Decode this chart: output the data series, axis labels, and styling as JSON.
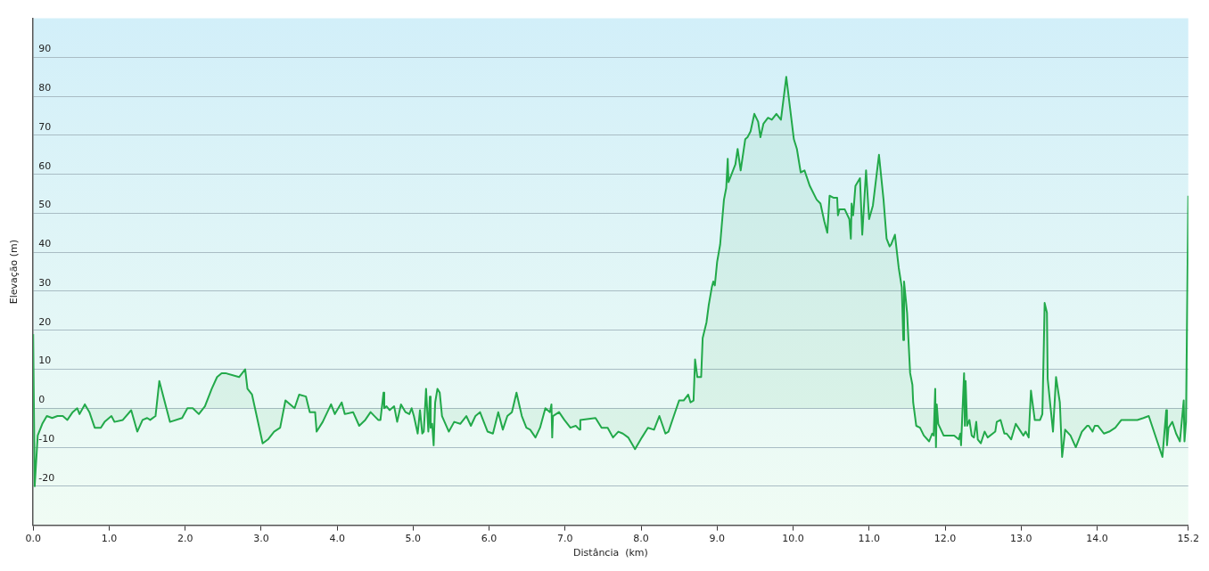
{
  "chart_data": {
    "type": "area",
    "xlabel": "Distância  (km)",
    "ylabel": "Elevação (m)",
    "xlim": [
      0,
      15.2
    ],
    "ylim": [
      -30,
      100
    ],
    "xticks": [
      {
        "value": 0,
        "label": "0.0"
      },
      {
        "value": 1,
        "label": "1.0"
      },
      {
        "value": 2,
        "label": "2.0"
      },
      {
        "value": 3,
        "label": "3.0"
      },
      {
        "value": 4,
        "label": "4.0"
      },
      {
        "value": 5,
        "label": "5.0"
      },
      {
        "value": 6,
        "label": "6.0"
      },
      {
        "value": 7,
        "label": "7.0"
      },
      {
        "value": 8,
        "label": "8.0"
      },
      {
        "value": 9,
        "label": "9.0"
      },
      {
        "value": 10,
        "label": "10.0"
      },
      {
        "value": 11,
        "label": "11.0"
      },
      {
        "value": 12,
        "label": "12.0"
      },
      {
        "value": 13,
        "label": "13.0"
      },
      {
        "value": 14,
        "label": "14.0"
      },
      {
        "value": 15.2,
        "label": "15.2"
      }
    ],
    "yticks": [
      -20,
      -10,
      0,
      10,
      20,
      30,
      40,
      50,
      60,
      70,
      80,
      90
    ],
    "grid": "y",
    "legend": false,
    "series": [
      {
        "color": "#22a94a",
        "x": [
          0,
          0.02,
          0.06,
          0.12,
          0.18,
          0.25,
          0.32,
          0.39,
          0.45,
          0.52,
          0.58,
          0.61,
          0.68,
          0.74,
          0.81,
          0.89,
          0.94,
          1.03,
          1.07,
          1.18,
          1.29,
          1.37,
          1.44,
          1.5,
          1.54,
          1.61,
          1.66,
          1.8,
          1.96,
          2.03,
          2.1,
          2.18,
          2.26,
          2.35,
          2.42,
          2.48,
          2.53,
          2.71,
          2.79,
          2.82,
          2.88,
          3.02,
          3.09,
          3.17,
          3.25,
          3.32,
          3.44,
          3.5,
          3.59,
          3.64,
          3.71,
          3.73,
          3.81,
          3.92,
          3.97,
          4.06,
          4.1,
          4.21,
          4.29,
          4.37,
          4.44,
          4.54,
          4.57,
          4.61,
          4.62,
          4.65,
          4.69,
          4.75,
          4.79,
          4.84,
          4.9,
          4.95,
          4.98,
          5.01,
          5.06,
          5.09,
          5.12,
          5.14,
          5.17,
          5.2,
          5.22,
          5.23,
          5.25,
          5.27,
          5.29,
          5.32,
          5.35,
          5.38,
          5.47,
          5.54,
          5.62,
          5.7,
          5.76,
          5.82,
          5.88,
          5.98,
          6.05,
          6.12,
          6.18,
          6.24,
          6.3,
          6.36,
          6.43,
          6.49,
          6.54,
          6.61,
          6.67,
          6.74,
          6.8,
          6.82,
          6.83,
          6.84,
          6.92,
          6.99,
          7.07,
          7.14,
          7.19,
          7.2,
          7.4,
          7.48,
          7.56,
          7.63,
          7.7,
          7.76,
          7.83,
          7.92,
          8.01,
          8.09,
          8.17,
          8.24,
          8.32,
          8.36,
          8.43,
          8.5,
          8.56,
          8.62,
          8.65,
          8.69,
          8.71,
          8.74,
          8.79,
          8.81,
          8.86,
          8.89,
          8.93,
          8.95,
          8.97,
          9.0,
          9.04,
          9.07,
          9.09,
          9.12,
          9.14,
          9.15,
          9.24,
          9.27,
          9.31,
          9.37,
          9.4,
          9.44,
          9.49,
          9.54,
          9.57,
          9.61,
          9.67,
          9.72,
          9.78,
          9.84,
          9.91,
          10.01,
          10.05,
          10.1,
          10.15,
          10.22,
          10.31,
          10.36,
          10.41,
          10.45,
          10.48,
          10.53,
          10.58,
          10.59,
          10.61,
          10.68,
          10.74,
          10.76,
          10.77,
          10.79,
          10.82,
          10.88,
          10.91,
          10.96,
          11.0,
          11.05,
          11.13,
          11.19,
          11.23,
          11.27,
          11.29,
          11.34,
          11.39,
          11.43,
          11.45,
          11.46,
          11.5,
          11.54,
          11.57,
          11.58,
          11.62,
          11.67,
          11.72,
          11.79,
          11.83,
          11.85,
          11.87,
          11.88,
          11.89,
          11.91,
          11.98,
          12.12,
          12.18,
          12.2,
          12.21,
          12.25,
          12.26,
          12.27,
          12.29,
          12.32,
          12.35,
          12.38,
          12.41,
          12.43,
          12.47,
          12.52,
          12.56,
          12.66,
          12.68,
          12.73,
          12.78,
          12.81,
          12.87,
          12.93,
          12.98,
          13.03,
          13.06,
          13.1,
          13.13,
          13.18,
          13.25,
          13.28,
          13.3,
          13.31,
          13.34,
          13.35,
          13.42,
          13.46,
          13.51,
          13.54,
          13.58,
          13.65,
          13.72,
          13.8,
          13.87,
          13.89,
          13.94,
          13.97,
          14.01,
          14.09,
          14.16,
          14.24,
          14.32,
          14.38,
          14.46,
          14.53,
          14.61,
          14.68,
          14.86,
          14.91,
          14.92,
          14.94,
          14.99,
          15.04,
          15.09,
          15.14,
          15.15,
          15.17,
          15.2
        ],
        "values": [
          19,
          -20,
          -7,
          -4,
          -2,
          -2.5,
          -2,
          -2,
          -3,
          -1,
          0,
          -1.5,
          1,
          -1,
          -5,
          -5,
          -3.5,
          -2,
          -3.5,
          -3,
          -0.5,
          -6,
          -3,
          -2.5,
          -3,
          -2,
          7,
          -3.5,
          -2.5,
          0,
          0,
          -1.5,
          0.5,
          5,
          8,
          9,
          9,
          8,
          10,
          5,
          3.5,
          -9,
          -8,
          -6,
          -5,
          2,
          0,
          3.5,
          3,
          -1,
          -1,
          -6,
          -3.5,
          1,
          -1.5,
          1.5,
          -1.5,
          -1,
          -4.5,
          -3,
          -1,
          -3,
          -3,
          4,
          0,
          0.5,
          -0.5,
          0.5,
          -3.5,
          1,
          -1,
          -1.5,
          0,
          -2,
          -6.5,
          -0.5,
          -6.5,
          -6,
          5,
          -6,
          3,
          -5,
          -4,
          -9.5,
          1.5,
          5,
          4,
          -2,
          -6,
          -3.5,
          -4,
          -2,
          -4.5,
          -2,
          -1,
          -6,
          -6.5,
          -1,
          -5.5,
          -2,
          -1,
          4,
          -2,
          -5,
          -5.5,
          -7.5,
          -5,
          0,
          -1,
          1,
          -7.5,
          -2,
          -1,
          -3,
          -5,
          -4.5,
          -5.5,
          -3,
          -2.5,
          -5,
          -5,
          -7.5,
          -6,
          -6.5,
          -7.5,
          -10.5,
          -7.5,
          -5,
          -5.5,
          -2,
          -6.5,
          -6,
          -2,
          2,
          2,
          3.5,
          1.5,
          2,
          12.5,
          8,
          8,
          18,
          22,
          26.5,
          31,
          32.5,
          31.5,
          37.5,
          42,
          49,
          53.5,
          56.5,
          64,
          58,
          62.5,
          66.5,
          61,
          69,
          69.5,
          71,
          75.5,
          73.5,
          69.5,
          73,
          74.5,
          74,
          75.5,
          74,
          85,
          69,
          66.5,
          60.5,
          61,
          57,
          53.5,
          52.5,
          48,
          45,
          54.5,
          54,
          54,
          49.5,
          51,
          51,
          48.5,
          43.5,
          52.5,
          49.5,
          57,
          59,
          44.5,
          61,
          48.5,
          52,
          65,
          53.5,
          43.5,
          41.5,
          42,
          44.5,
          36,
          31,
          17.5,
          32.5,
          24.5,
          9,
          6,
          1.5,
          -4.5,
          -5,
          -7,
          -8.5,
          -6.5,
          -7,
          5,
          -10,
          1,
          -4,
          -7,
          -7,
          -8,
          -6.5,
          -9.5,
          9,
          -4.5,
          7,
          -4.5,
          -3,
          -7,
          -7.5,
          -3.5,
          -8,
          -9,
          -6,
          -7.5,
          -6,
          -3.5,
          -3,
          -6.5,
          -6.5,
          -8,
          -4,
          -5.5,
          -7,
          -6,
          -7.5,
          4.5,
          -3,
          -3,
          -1.5,
          17,
          27,
          24.5,
          7.5,
          -6,
          8,
          1.5,
          -12.5,
          -5.5,
          -7,
          -10,
          -6,
          -4.5,
          -4.5,
          -6,
          -4.5,
          -4.5,
          -6.5,
          -6,
          -5,
          -3,
          -3,
          -3,
          -3,
          -2.5,
          -2,
          -12.5,
          -0.5,
          -9.5,
          -5,
          -3.5,
          -6.5,
          -8.5,
          2,
          -8.5,
          -3.5,
          54.5
        ]
      }
    ]
  }
}
